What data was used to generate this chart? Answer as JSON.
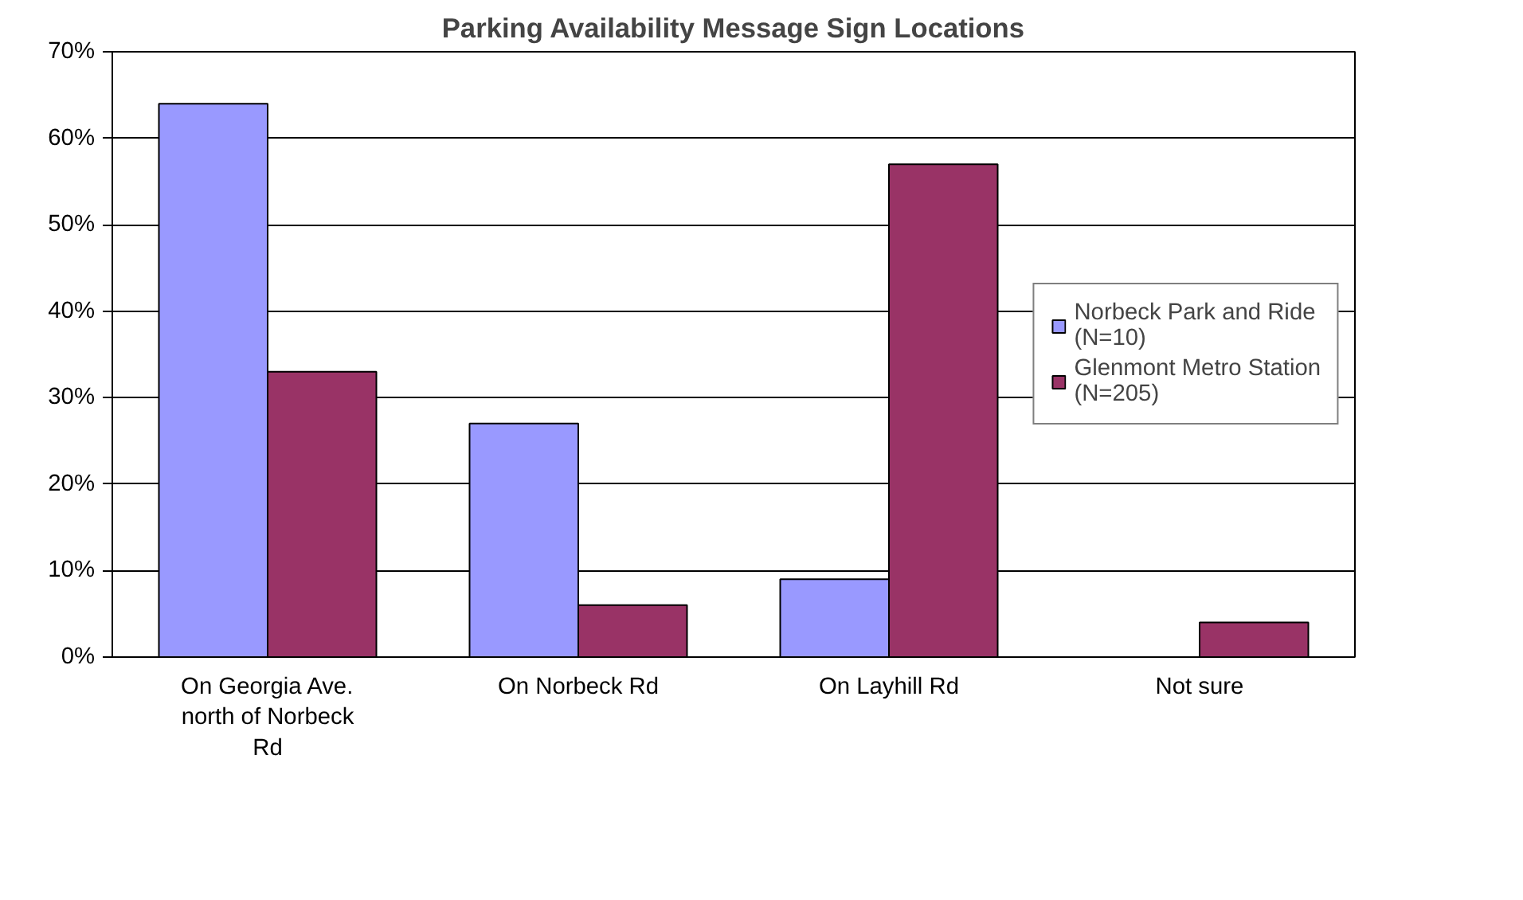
{
  "chart_data": {
    "type": "bar",
    "title": "Parking Availability Message Sign Locations",
    "categories": [
      "On Georgia Ave. north of Norbeck Rd",
      "On Norbeck Rd",
      "On Layhill Rd",
      "Not sure"
    ],
    "series": [
      {
        "name": "Norbeck Park and Ride (N=10)",
        "color": "#9999ff",
        "values": [
          64,
          27,
          9,
          0
        ]
      },
      {
        "name": "Glenmont Metro Station (N=205)",
        "color": "#993366",
        "values": [
          33,
          6,
          57,
          4
        ]
      }
    ],
    "ylim": [
      0,
      70
    ],
    "yticks": [
      {
        "value": 0,
        "label": "0%"
      },
      {
        "value": 10,
        "label": "10%"
      },
      {
        "value": 20,
        "label": "20%"
      },
      {
        "value": 30,
        "label": "30%"
      },
      {
        "value": 40,
        "label": "40%"
      },
      {
        "value": 50,
        "label": "50%"
      },
      {
        "value": 60,
        "label": "60%"
      },
      {
        "value": 70,
        "label": "70%"
      }
    ],
    "grid": "y",
    "legend": "right"
  }
}
